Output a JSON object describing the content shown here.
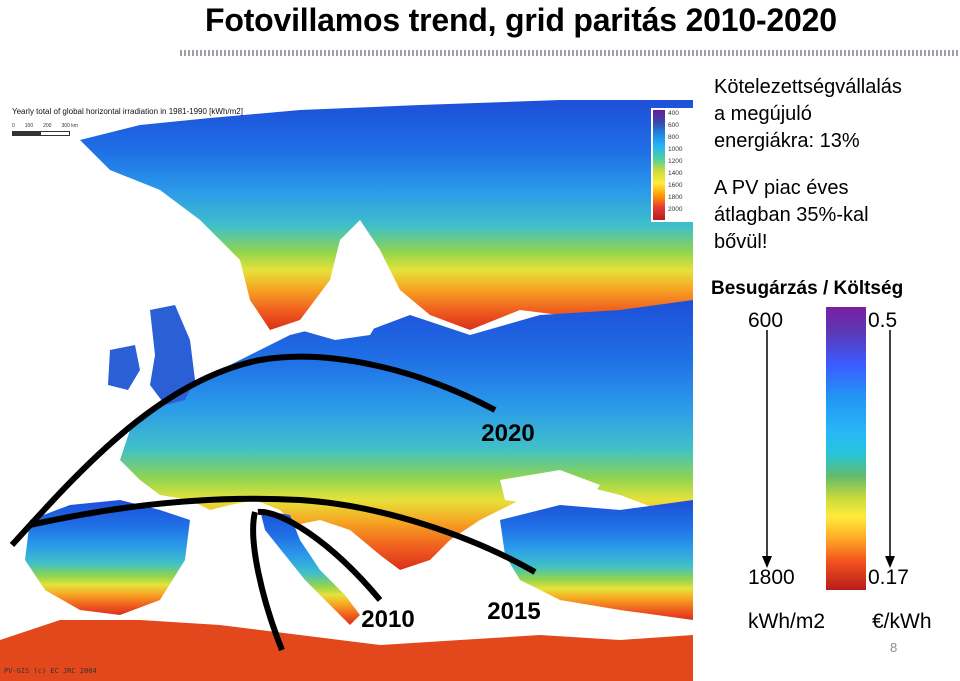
{
  "slide": {
    "title": "Fotovillamos trend, grid paritás 2010-2020",
    "page_number": "8"
  },
  "map": {
    "caption": "Yearly total of global horizontal irradiation in 1981-1990 [kWh/m2]",
    "scale_labels": [
      "0",
      "100",
      "200",
      "300 km"
    ],
    "credit": "PV-GIS (c) EC JRC 2004",
    "legend_ticks": [
      "400",
      "600",
      "800",
      "1000",
      "1200",
      "1400",
      "1600",
      "1800",
      "2000",
      "2000"
    ],
    "region_labels": [
      "2020",
      "2015",
      "2010"
    ]
  },
  "info": {
    "commitment_lines": [
      "Kötelezettségvállalás",
      "a megújuló",
      "energiákra: 13%"
    ],
    "market_lines": [
      "A PV piac éves",
      "átlagban 35%-kal",
      "bővül!"
    ]
  },
  "legend": {
    "heading": "Besugárzás / Költség",
    "irradiation_top": "600",
    "irradiation_bottom": "1800",
    "irradiation_unit": "kWh/m2",
    "cost_top": "0.5",
    "cost_bottom": "0.17",
    "cost_unit": "€/kWh"
  },
  "colors": {
    "sea": "#ffffff",
    "low_irradiation": "#3d5afe",
    "high_irradiation": "#b71c1c"
  }
}
